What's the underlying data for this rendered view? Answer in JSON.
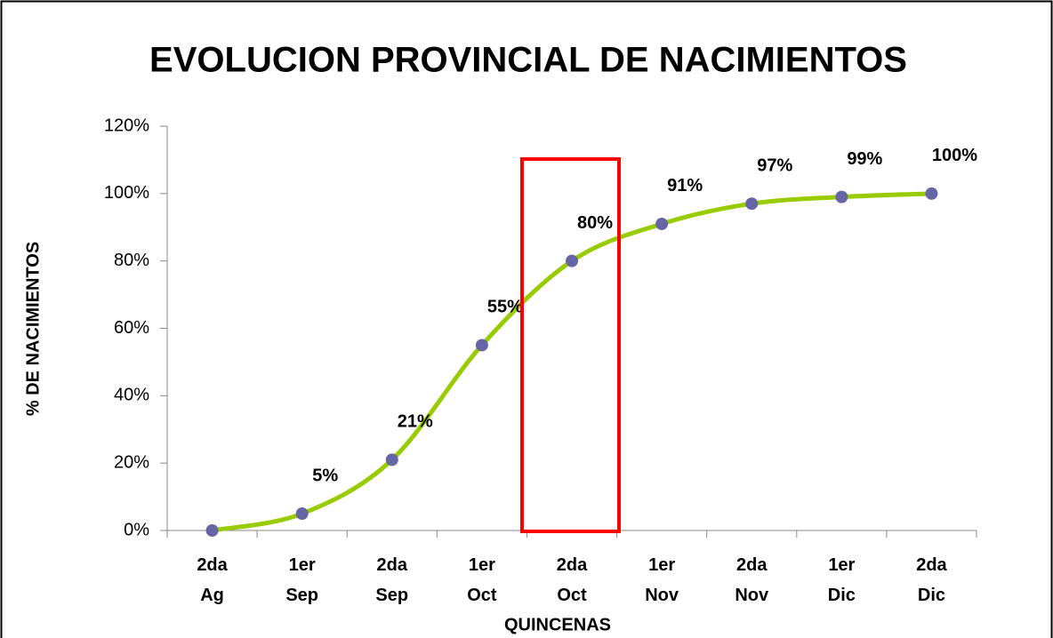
{
  "chart_data": {
    "type": "line",
    "title": "EVOLUCION PROVINCIAL DE NACIMIENTOS",
    "x_label": "QUINCENAS",
    "y_label": "% DE NACIMIENTOS",
    "categories": [
      "2da Ag",
      "1er Sep",
      "2da Sep",
      "1er Oct",
      "2da Oct",
      "1er Nov",
      "2da Nov",
      "1er Dic",
      "2da Dic"
    ],
    "series": [
      {
        "name": "Nacimientos",
        "color": "#99cc00",
        "marker_color": "#6666a6",
        "values": [
          0,
          5,
          21,
          55,
          80,
          91,
          97,
          99,
          100
        ],
        "value_labels": [
          null,
          "5%",
          "21%",
          "55%",
          "80%",
          "91%",
          "97%",
          "99%",
          "100%"
        ]
      }
    ],
    "ylim": [
      0,
      120
    ],
    "yticks": [
      {
        "value": 0,
        "label": "0%"
      },
      {
        "value": 20,
        "label": "20%"
      },
      {
        "value": 40,
        "label": "40%"
      },
      {
        "value": 60,
        "label": "60%"
      },
      {
        "value": 80,
        "label": "80%"
      },
      {
        "value": 100,
        "label": "100%"
      },
      {
        "value": 120,
        "label": "120%"
      }
    ],
    "grid": false
  }
}
